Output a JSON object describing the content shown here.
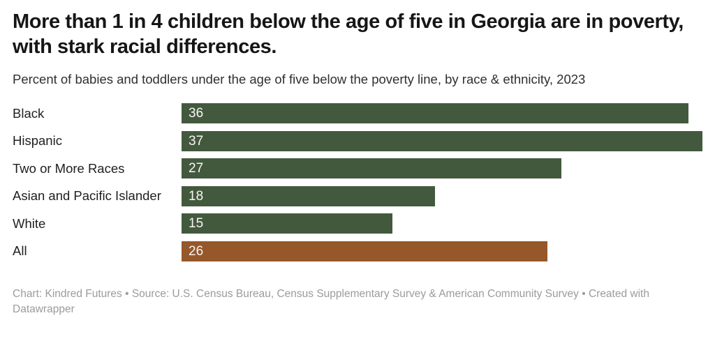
{
  "header": {
    "title": "More than 1 in 4 children below the age of five in Georgia are in poverty, with stark racial differences.",
    "subtitle": "Percent of babies and toddlers under the age of five below the poverty line, by race & ethnicity, 2023"
  },
  "chart_data": {
    "type": "bar",
    "orientation": "horizontal",
    "title": "More than 1 in 4 children below the age of five in Georgia are in poverty, with stark racial differences.",
    "subtitle": "Percent of babies and toddlers under the age of five below the poverty line, by race & ethnicity, 2023",
    "categories": [
      "Black",
      "Hispanic",
      "Two or More Races",
      "Asian and Pacific Islander",
      "White",
      "All"
    ],
    "values": [
      36,
      37,
      27,
      18,
      15,
      26
    ],
    "value_labels_inside_bars": true,
    "xlabel": "",
    "ylabel": "",
    "xlim": [
      0,
      37
    ],
    "grid": false,
    "legend": "none",
    "bar_colors": [
      "#43593e",
      "#43593e",
      "#43593e",
      "#43593e",
      "#43593e",
      "#96572a"
    ],
    "highlight_category": "All"
  },
  "colors": {
    "bar_green": "#43593e",
    "bar_orange": "#96572a",
    "title_text": "#161616",
    "subtitle_text": "#2f2f2f",
    "value_label_text": "#f7f6f2",
    "footer_text": "#9b9b9b",
    "background": "#ffffff"
  },
  "footer": {
    "text": "Chart: Kindred Futures • Source: U.S. Census Bureau, Census Supplementary Survey & American Community Survey • Created with Datawrapper"
  }
}
